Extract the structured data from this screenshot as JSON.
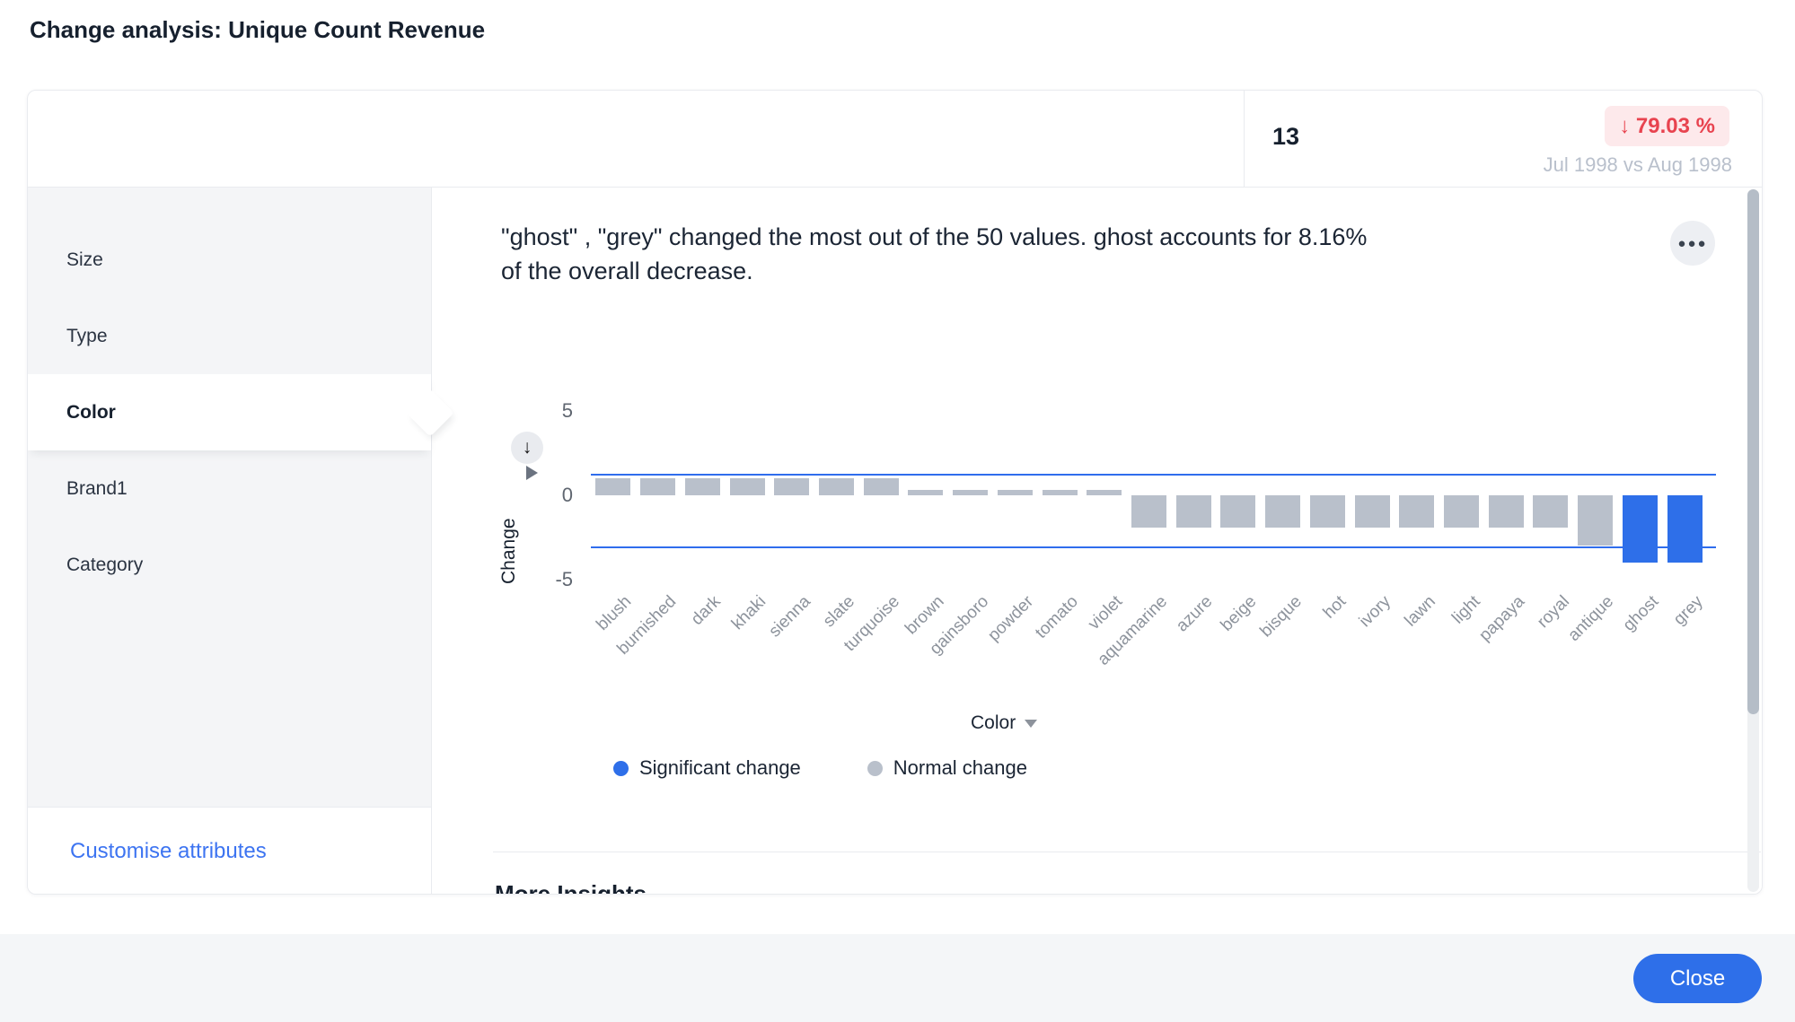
{
  "title": "Change analysis: Unique Count Revenue",
  "header_card": {
    "count": "13",
    "change_badge": "↓ 79.03 %",
    "comparison": "Jul 1998 vs Aug 1998"
  },
  "sidebar": {
    "items": [
      {
        "label": "Size",
        "selected": false
      },
      {
        "label": "Type",
        "selected": false
      },
      {
        "label": "Color",
        "selected": true
      },
      {
        "label": "Brand1",
        "selected": false
      },
      {
        "label": "Category",
        "selected": false
      }
    ],
    "customise_link": "Customise attributes"
  },
  "insight": {
    "lines": [
      "\"ghost\" , \"grey\" changed the most out of the 50 values. ghost accounts for 8.16%",
      "of the overall decrease."
    ],
    "menu_icon": "ellipsis-icon",
    "sort_icon": "arrow-down-icon",
    "expand_icon": "triangle-right-icon"
  },
  "chart_data": {
    "type": "bar",
    "title": "",
    "ylabel": "Change",
    "xlabel": "Color",
    "ylim": [
      -5,
      5
    ],
    "yticks": [
      5,
      0,
      -5
    ],
    "grid": false,
    "legend_position": "bottom-left",
    "categories": [
      "blush",
      "burnished",
      "dark",
      "khaki",
      "sienna",
      "slate",
      "turquoise",
      "brown",
      "gainsboro",
      "powder",
      "tomato",
      "violet",
      "aquamarine",
      "azure",
      "beige",
      "bisque",
      "hot",
      "ivory",
      "lawn",
      "light",
      "papaya",
      "royal",
      "antique",
      "ghost",
      "grey"
    ],
    "values": [
      1,
      1,
      1,
      1,
      1,
      1,
      1,
      0.3,
      0.3,
      0.3,
      0.3,
      0.3,
      -1.9,
      -1.9,
      -1.9,
      -1.9,
      -1.9,
      -1.9,
      -1.9,
      -1.9,
      -1.9,
      -1.9,
      -3,
      -4,
      -4
    ],
    "significant_categories": [
      "ghost",
      "grey"
    ],
    "thresholds": {
      "upper": 1.2,
      "lower": -3.1
    },
    "colors": {
      "significant": "#2e6fe9",
      "normal": "#b9c0cb",
      "threshold_line": "#2f6ded"
    },
    "legend": [
      {
        "label": "Significant change",
        "color": "#2e6fe9"
      },
      {
        "label": "Normal change",
        "color": "#b9c0cb"
      }
    ]
  },
  "more_insights": {
    "title": "More Insights"
  },
  "footer": {
    "close_label": "Close"
  },
  "accent_colors": {
    "primary_blue": "#2e6fe9",
    "link_blue": "#3d74f1",
    "negative_red": "#e8434f",
    "negative_badge_bg": "#fde9eb"
  }
}
